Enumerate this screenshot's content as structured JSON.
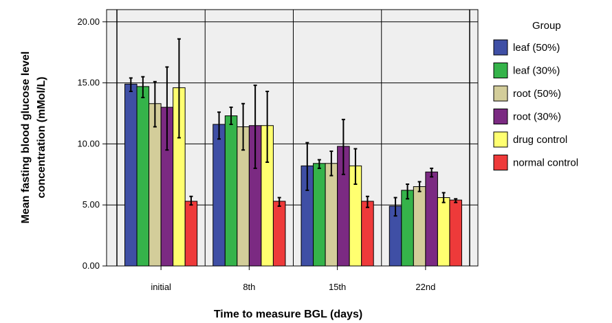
{
  "chart_data": {
    "type": "bar",
    "title": "",
    "xlabel": "Time to measure BGL (days)",
    "ylabel_lines": [
      "Mean fasting blood glucose level",
      "concentration (mMol/L)"
    ],
    "ylim": [
      0,
      21
    ],
    "yticks": [
      0,
      5,
      10,
      15,
      20
    ],
    "ytick_labels": [
      "0.00",
      "5.00",
      "10.00",
      "15.00",
      "20.00"
    ],
    "grid": "horizontal",
    "categories": [
      "initial",
      "8th",
      "15th",
      "22nd"
    ],
    "legend": {
      "title": "Group",
      "position": "right"
    },
    "series": [
      {
        "name": "leaf (50%)",
        "color": "#3f4fa5",
        "values": [
          14.9,
          11.6,
          8.2,
          4.9
        ],
        "err_low": [
          14.3,
          10.4,
          6.2,
          4.1
        ],
        "err_high": [
          15.4,
          12.6,
          10.1,
          5.6
        ]
      },
      {
        "name": "leaf (30%)",
        "color": "#35b34a",
        "values": [
          14.7,
          12.3,
          8.4,
          6.2
        ],
        "err_low": [
          13.8,
          11.6,
          8.0,
          5.5
        ],
        "err_high": [
          15.5,
          13.0,
          8.7,
          6.7
        ]
      },
      {
        "name": "root (50%)",
        "color": "#d3cd9a",
        "values": [
          13.3,
          11.4,
          8.4,
          6.5
        ],
        "err_low": [
          11.4,
          9.5,
          7.4,
          6.1
        ],
        "err_high": [
          15.1,
          13.3,
          9.4,
          6.9
        ]
      },
      {
        "name": "root (30%)",
        "color": "#7b2a82",
        "values": [
          13.0,
          11.5,
          9.8,
          7.7
        ],
        "err_low": [
          9.5,
          8.0,
          7.5,
          7.3
        ],
        "err_high": [
          16.3,
          14.8,
          12.0,
          8.0
        ]
      },
      {
        "name": "drug control",
        "color": "#ffff70",
        "values": [
          14.6,
          11.5,
          8.2,
          5.6
        ],
        "err_low": [
          10.5,
          8.5,
          6.7,
          5.2
        ],
        "err_high": [
          18.6,
          14.3,
          9.6,
          6.0
        ]
      },
      {
        "name": "normal control",
        "color": "#ee3a3a",
        "values": [
          5.3,
          5.3,
          5.3,
          5.4
        ],
        "err_low": [
          5.0,
          4.9,
          4.8,
          5.2
        ],
        "err_high": [
          5.7,
          5.6,
          5.7,
          5.5
        ]
      }
    ]
  }
}
